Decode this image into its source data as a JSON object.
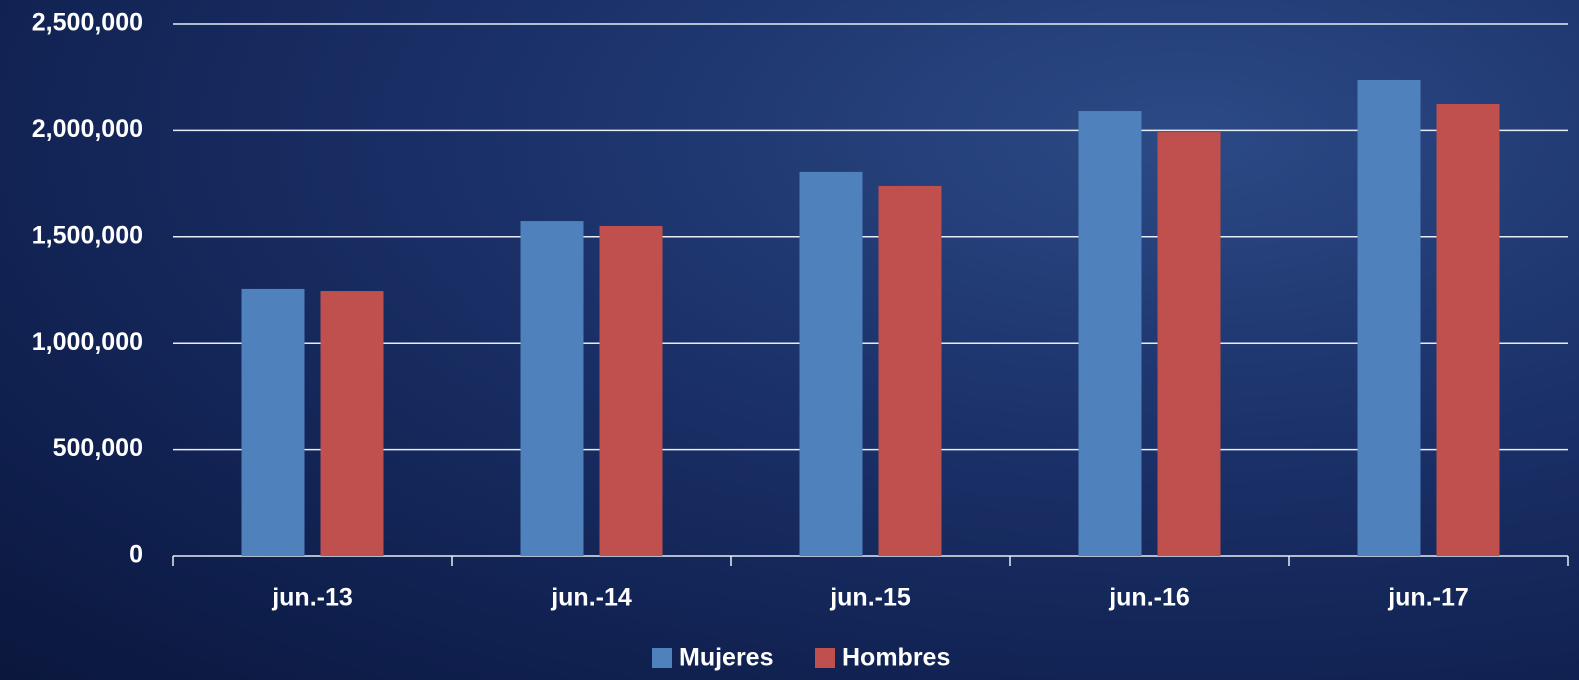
{
  "chart_data": {
    "type": "bar",
    "categories": [
      "jun.-13",
      "jun.-14",
      "jun.-15",
      "jun.-16",
      "jun.-17"
    ],
    "series": [
      {
        "name": "Mujeres",
        "color": "#4f81bd",
        "values": [
          1255000,
          1574000,
          1805000,
          2091000,
          2237000
        ]
      },
      {
        "name": "Hombres",
        "color": "#c0504d",
        "values": [
          1245000,
          1551000,
          1739000,
          1992000,
          2124000
        ]
      }
    ],
    "ylim": [
      0,
      2500000
    ],
    "yticks": [
      0,
      {
        "value": 500000,
        "label": "500,000"
      },
      {
        "value": 1000000,
        "label": "1,000,000"
      },
      {
        "value": 1500000,
        "label": "1,500,000"
      },
      {
        "value": 2000000,
        "label": "2,000,000"
      },
      {
        "value": 2500000,
        "label": "2,500,000"
      }
    ],
    "grid": true,
    "legend": "bottom"
  }
}
